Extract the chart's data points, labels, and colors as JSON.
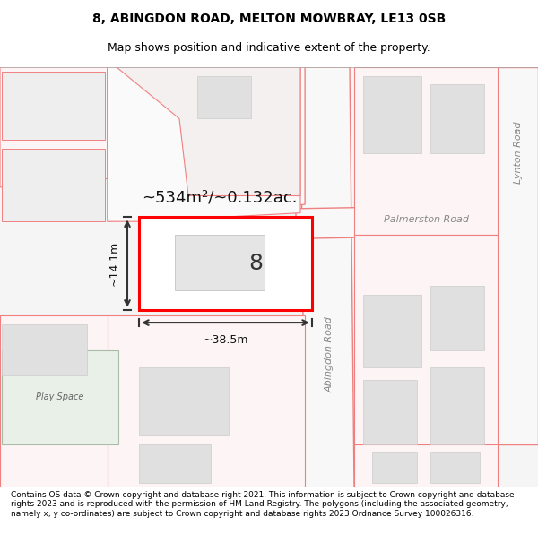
{
  "title_line1": "8, ABINGDON ROAD, MELTON MOWBRAY, LE13 0SB",
  "title_line2": "Map shows position and indicative extent of the property.",
  "footer_text": "Contains OS data © Crown copyright and database right 2021. This information is subject to Crown copyright and database rights 2023 and is reproduced with the permission of HM Land Registry. The polygons (including the associated geometry, namely x, y co-ordinates) are subject to Crown copyright and database rights 2023 Ordnance Survey 100026316.",
  "map_bg": "#f5f5f5",
  "road_fill": "#ffffff",
  "building_fill": "#e0e0e0",
  "building_stroke": "#cccccc",
  "plot_fill": "#ffffff",
  "plot_stroke": "#ff0000",
  "road_stroke": "#f08080",
  "green_fill": "#e8f0e8",
  "green_stroke": "#cccccc",
  "measure_color": "#333333",
  "area_text": "~534m²/~0.132ac.",
  "width_text": "~38.5m",
  "height_text": "~14.1m",
  "label_8": "8",
  "road_label_abingdon": "Abingdon Road",
  "road_label_palmerston": "Palmerston Road",
  "road_label_lynton": "Lynton Road",
  "play_space_label": "Play Space"
}
